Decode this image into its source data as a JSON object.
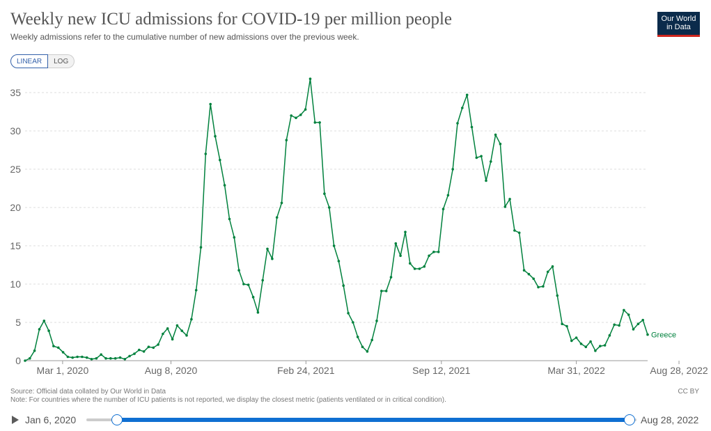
{
  "header": {
    "title": "Weekly new ICU admissions for COVID-19 per million people",
    "subtitle": "Weekly admissions refer to the cumulative number of new admissions over the previous week.",
    "logo_line1": "Our World",
    "logo_line2": "in Data"
  },
  "controls": {
    "linear_label": "LINEAR",
    "log_label": "LOG",
    "active": "linear"
  },
  "footer": {
    "source": "Source: Official data collated by Our World in Data",
    "note": "Note: For countries where the number of ICU patients is not reported, we display the closest metric (patients ventilated or in critical condition).",
    "license": "CC BY"
  },
  "timeline": {
    "start_label": "Jan 6, 2020",
    "end_label": "Aug 28, 2022"
  },
  "colors": {
    "series": "#00813d",
    "accent": "#0f6fd2",
    "grid": "#dddddd"
  },
  "chart_data": {
    "type": "line",
    "title": "Weekly new ICU admissions for COVID-19 per million people",
    "xlabel": "",
    "ylabel": "",
    "ylim": [
      0,
      35
    ],
    "yticks": [
      0,
      5,
      10,
      15,
      20,
      25,
      30,
      35
    ],
    "x_start": "2020-01-06",
    "x_end": "2022-08-28",
    "x_interval_days": 7,
    "xticks": [
      {
        "label": "Mar 1, 2020",
        "index": 7.9
      },
      {
        "label": "Aug 8, 2020",
        "index": 30.7
      },
      {
        "label": "Feb 24, 2021",
        "index": 59.1
      },
      {
        "label": "Sep 12, 2021",
        "index": 87.6
      },
      {
        "label": "Mar 31, 2022",
        "index": 116.0
      },
      {
        "label": "Aug 28, 2022",
        "index": 137.6
      }
    ],
    "series": [
      {
        "name": "Greece",
        "values": [
          0,
          0.3,
          1.3,
          4.1,
          5.2,
          3.9,
          1.9,
          1.7,
          1.1,
          0.5,
          0.4,
          0.5,
          0.5,
          0.4,
          0.2,
          0.3,
          0.8,
          0.3,
          0.3,
          0.3,
          0.4,
          0.2,
          0.6,
          0.9,
          1.4,
          1.2,
          1.8,
          1.7,
          2.1,
          3.5,
          4.2,
          2.8,
          4.6,
          3.9,
          3.3,
          5.4,
          9.2,
          14.8,
          27.0,
          33.5,
          29.3,
          26.2,
          22.9,
          18.5,
          16.1,
          11.8,
          10.0,
          9.9,
          8.3,
          6.3,
          10.5,
          14.6,
          13.3,
          18.7,
          20.6,
          28.8,
          32.0,
          31.7,
          32.1,
          32.8,
          36.8,
          31.1,
          31.1,
          21.8,
          20.0,
          15.0,
          13.0,
          9.8,
          6.2,
          5.0,
          3.1,
          1.8,
          1.2,
          2.7,
          5.2,
          9.1,
          9.1,
          10.9,
          15.3,
          13.7,
          16.8,
          12.7,
          12.0,
          12.0,
          12.3,
          13.7,
          14.2,
          14.2,
          19.8,
          21.6,
          25.0,
          31.0,
          33.0,
          34.7,
          30.5,
          26.5,
          26.7,
          23.5,
          26.0,
          29.5,
          28.3,
          20.1,
          21.1,
          17.0,
          16.7,
          11.8,
          11.3,
          10.7,
          9.6,
          9.7,
          11.6,
          12.3,
          8.5,
          4.8,
          4.5,
          2.6,
          3.0,
          2.2,
          1.8,
          2.5,
          1.3,
          1.9,
          2.0,
          3.3,
          4.7,
          4.6,
          6.6,
          6.0,
          4.1,
          4.8,
          5.3,
          3.4
        ],
        "end_label": "Greece"
      }
    ]
  }
}
